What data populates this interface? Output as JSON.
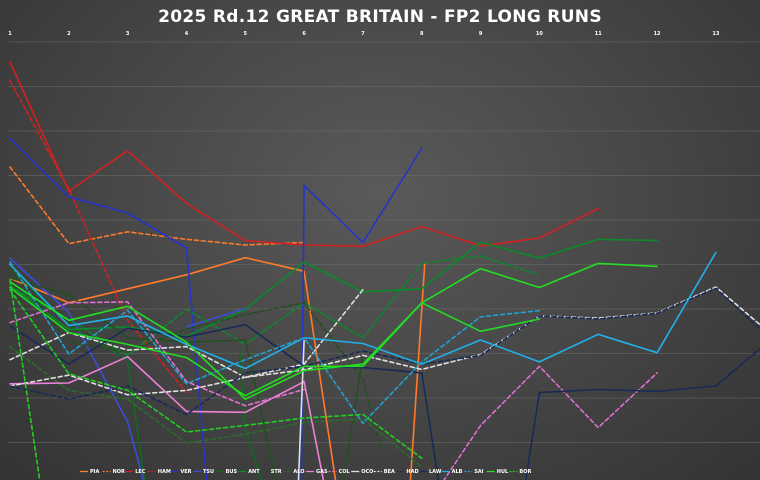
{
  "chart_data": {
    "type": "line",
    "title": "2025 Rd.12 GREAT BRITAIN - FP2 LONG RUNS",
    "xlabel": "",
    "ylabel": "",
    "x_ticks": [
      "1",
      "2",
      "3",
      "4",
      "5",
      "6",
      "7",
      "8",
      "9",
      "10",
      "11",
      "12",
      "13"
    ],
    "x_range": [
      1,
      13.75
    ],
    "y_range": [
      0,
      1
    ],
    "grid": true,
    "legend_position": "bottom",
    "series": [
      {
        "name": "PIA",
        "color": "#ff7a2a",
        "dash": "solid",
        "points": [
          [
            1,
            0.544
          ],
          [
            2,
            0.6
          ],
          [
            3,
            0.568
          ],
          [
            4,
            0.536
          ],
          [
            5,
            0.497
          ],
          [
            6,
            0.528
          ],
          [
            6.55,
            1.02
          ]
        ]
      },
      {
        "name": "NOR",
        "color": "#ff7a2a",
        "dash": "dashed",
        "points": [
          [
            1,
            0.29
          ],
          [
            2,
            0.465
          ],
          [
            3,
            0.438
          ],
          [
            4,
            0.455
          ],
          [
            5,
            0.468
          ],
          [
            6,
            0.462
          ]
        ]
      },
      {
        "name": "",
        "color": "#ff7a2a",
        "dash": "solid",
        "points": [
          [
            7.8,
            1.02
          ],
          [
            8.05,
            0.512
          ]
        ]
      },
      {
        "name": "LEC",
        "color": "#d42020",
        "dash": "solid",
        "points": [
          [
            1,
            0.05
          ],
          [
            2,
            0.345
          ],
          [
            3,
            0.253
          ],
          [
            4,
            0.373
          ],
          [
            5,
            0.458
          ],
          [
            6,
            0.468
          ],
          [
            7,
            0.471
          ],
          [
            8,
            0.426
          ],
          [
            9,
            0.47
          ],
          [
            10,
            0.452
          ],
          [
            11,
            0.385
          ]
        ]
      },
      {
        "name": "HAM",
        "color": "#d42020",
        "dash": "dashed",
        "points": [
          [
            1,
            0.093
          ],
          [
            2,
            0.34
          ],
          [
            3,
            0.64
          ],
          [
            4,
            0.805
          ]
        ]
      },
      {
        "name": "VER",
        "color": "#2535c8",
        "dash": "solid",
        "points": [
          [
            1,
            0.225
          ],
          [
            2,
            0.358
          ],
          [
            3,
            0.395
          ],
          [
            4,
            0.475
          ],
          [
            4.35,
            1.02
          ]
        ]
      },
      {
        "name": "",
        "color": "#2535c8",
        "dash": "solid",
        "points": [
          [
            5.95,
            1.02
          ],
          [
            6,
            0.332
          ],
          [
            7,
            0.462
          ],
          [
            8,
            0.247
          ]
        ]
      },
      {
        "name": "TSU",
        "color": "#3a4ed8",
        "dash": "solid",
        "points": [
          [
            1,
            0.498
          ],
          [
            2,
            0.622
          ],
          [
            3,
            0.872
          ],
          [
            3.3,
            1.02
          ]
        ]
      },
      {
        "name": "",
        "color": "#3a4ed8",
        "dash": "solid",
        "points": [
          [
            4,
            0.655
          ],
          [
            5,
            0.613
          ]
        ]
      },
      {
        "name": "BUS",
        "color": "#116a20",
        "dash": "solid",
        "points": [
          [
            1,
            0.52
          ],
          [
            2,
            0.65
          ],
          [
            3,
            0.73
          ],
          [
            3.3,
            1.02
          ]
        ]
      },
      {
        "name": "",
        "color": "#116a20",
        "dash": "solid",
        "points": [
          [
            4.9,
            0.702
          ],
          [
            5,
            0.885
          ],
          [
            5.3,
            1.02
          ]
        ]
      },
      {
        "name": "ANT",
        "color": "#0a8a2a",
        "dash": "solid",
        "points": [
          [
            1,
            0.56
          ],
          [
            2,
            0.661
          ],
          [
            3,
            0.655
          ],
          [
            4,
            0.677
          ],
          [
            5,
            0.615
          ],
          [
            6,
            0.507
          ],
          [
            7,
            0.575
          ],
          [
            8,
            0.568
          ],
          [
            9,
            0.462
          ],
          [
            10,
            0.498
          ],
          [
            11,
            0.455
          ],
          [
            12,
            0.458
          ]
        ]
      },
      {
        "name": "",
        "color": "#0a8a2a",
        "dash": "dashed",
        "points": [
          [
            1,
            0.562
          ],
          [
            2,
            0.638
          ],
          [
            3,
            0.72
          ],
          [
            4,
            0.615
          ],
          [
            5,
            0.695
          ],
          [
            6,
            0.6
          ],
          [
            7,
            0.68
          ],
          [
            8,
            0.51
          ],
          [
            9,
            0.493
          ],
          [
            10,
            0.537
          ]
        ]
      },
      {
        "name": "STR",
        "color": "#234f22",
        "dash": "dashed",
        "points": [
          [
            1,
            0.52
          ],
          [
            2,
            0.69
          ],
          [
            3,
            0.712
          ],
          [
            4,
            0.66
          ],
          [
            5,
            0.627
          ],
          [
            6,
            0.6
          ],
          [
            7,
            0.775
          ],
          [
            7.3,
            0.93
          ]
        ]
      },
      {
        "name": "",
        "color": "#234f22",
        "dash": "solid",
        "points": [
          [
            1,
            0.543
          ],
          [
            2,
            0.582
          ],
          [
            3,
            0.68
          ],
          [
            4,
            0.69
          ],
          [
            5,
            0.685
          ],
          [
            5.55,
            1.02
          ]
        ]
      },
      {
        "name": "",
        "color": "#234f22",
        "dash": "solid",
        "points": [
          [
            6.65,
            1.02
          ],
          [
            7,
            0.72
          ]
        ]
      },
      {
        "name": "ALO",
        "color": "#2c6b2c",
        "dash": "dashed",
        "points": [
          [
            1,
            0.7
          ],
          [
            2,
            0.8
          ],
          [
            3,
            0.82
          ],
          [
            4,
            0.92
          ],
          [
            5,
            0.9
          ],
          [
            6,
            0.873
          ],
          [
            7,
            0.865
          ],
          [
            8,
            0.975
          ]
        ]
      },
      {
        "name": "GAS",
        "color": "#f080d8",
        "dash": "solid",
        "points": [
          [
            1,
            0.785
          ],
          [
            2,
            0.783
          ],
          [
            3,
            0.723
          ],
          [
            4,
            0.848
          ],
          [
            5,
            0.85
          ],
          [
            6,
            0.78
          ],
          [
            6.35,
            1.02
          ]
        ]
      },
      {
        "name": "COL",
        "color": "#e070d0",
        "dash": "dashed",
        "points": [
          [
            1,
            0.645
          ],
          [
            2,
            0.6
          ],
          [
            3,
            0.598
          ],
          [
            4,
            0.78
          ],
          [
            5,
            0.835
          ],
          [
            6,
            0.798
          ]
        ]
      },
      {
        "name": "",
        "color": "#e070d0",
        "dash": "dashed",
        "points": [
          [
            8.3,
            1.02
          ],
          [
            9,
            0.88
          ],
          [
            10,
            0.745
          ],
          [
            11,
            0.885
          ],
          [
            12,
            0.76
          ]
        ]
      },
      {
        "name": "OCO",
        "color": "#e0e0e0",
        "dash": "solid",
        "points": [
          [
            5.9,
            1.02
          ],
          [
            6,
            0.686
          ]
        ]
      },
      {
        "name": "",
        "color": "#e0e0e0",
        "dash": "dashed",
        "points": [
          [
            1,
            0.79
          ],
          [
            2,
            0.765
          ],
          [
            3,
            0.81
          ],
          [
            4,
            0.8
          ],
          [
            5,
            0.77
          ],
          [
            6,
            0.74
          ],
          [
            7,
            0.57
          ]
        ]
      },
      {
        "name": "BEA",
        "color": "#e0e0e0",
        "dash": "dashed",
        "points": [
          [
            1,
            0.73
          ],
          [
            2,
            0.668
          ],
          [
            3,
            0.708
          ],
          [
            4,
            0.7
          ],
          [
            5,
            0.77
          ],
          [
            6,
            0.753
          ],
          [
            7,
            0.72
          ],
          [
            8,
            0.752
          ],
          [
            9,
            0.718
          ],
          [
            10,
            0.63
          ],
          [
            11,
            0.635
          ],
          [
            12,
            0.623
          ],
          [
            13,
            0.564
          ],
          [
            13.75,
            0.65
          ]
        ]
      },
      {
        "name": "HAD",
        "color": "#1a2a58",
        "dash": "dashed",
        "points": [
          [
            1,
            0.79
          ],
          [
            2,
            0.82
          ],
          [
            3,
            0.79
          ],
          [
            4,
            0.855
          ],
          [
            5,
            0.76
          ],
          [
            6,
            0.745
          ],
          [
            7,
            0.71
          ],
          [
            8,
            0.74
          ],
          [
            9,
            0.72
          ],
          [
            10,
            0.63
          ],
          [
            11,
            0.637
          ],
          [
            12,
            0.624
          ],
          [
            13,
            0.567
          ],
          [
            13.75,
            0.66
          ]
        ]
      },
      {
        "name": "LAW",
        "color": "#1a2a58",
        "dash": "solid",
        "points": [
          [
            1,
            0.653
          ],
          [
            2,
            0.74
          ],
          [
            3,
            0.658
          ],
          [
            4,
            0.678
          ],
          [
            5,
            0.65
          ],
          [
            6,
            0.745
          ],
          [
            7,
            0.748
          ],
          [
            8,
            0.76
          ],
          [
            8.3,
            1.02
          ]
        ]
      },
      {
        "name": "",
        "color": "#1a2a58",
        "dash": "solid",
        "points": [
          [
            9.75,
            1.02
          ],
          [
            10,
            0.805
          ],
          [
            11,
            0.798
          ],
          [
            12,
            0.802
          ],
          [
            13,
            0.79
          ],
          [
            13.75,
            0.705
          ]
        ]
      },
      {
        "name": "ALB",
        "color": "#22b0e8",
        "dash": "solid",
        "points": [
          [
            1,
            0.512
          ],
          [
            2,
            0.652
          ],
          [
            3,
            0.63
          ],
          [
            4,
            0.695
          ],
          [
            5,
            0.75
          ],
          [
            6,
            0.68
          ],
          [
            7,
            0.693
          ],
          [
            8,
            0.74
          ],
          [
            9,
            0.685
          ],
          [
            10,
            0.735
          ],
          [
            11,
            0.672
          ],
          [
            12,
            0.714
          ],
          [
            13,
            0.485
          ]
        ]
      },
      {
        "name": "SAI",
        "color": "#22a0d0",
        "dash": "dashed",
        "points": [
          [
            1,
            0.507
          ],
          [
            2,
            0.717
          ],
          [
            3,
            0.617
          ],
          [
            4,
            0.785
          ],
          [
            5,
            0.73
          ],
          [
            6,
            0.68
          ],
          [
            7,
            0.875
          ],
          [
            8,
            0.735
          ],
          [
            9,
            0.632
          ],
          [
            10,
            0.618
          ]
        ]
      },
      {
        "name": "HUL",
        "color": "#22dd22",
        "dash": "solid",
        "points": [
          [
            1,
            0.552
          ],
          [
            2,
            0.64
          ],
          [
            3,
            0.608
          ],
          [
            4,
            0.69
          ],
          [
            5,
            0.82
          ],
          [
            6,
            0.755
          ],
          [
            7,
            0.74
          ],
          [
            8,
            0.6
          ],
          [
            9,
            0.665
          ],
          [
            10,
            0.637
          ]
        ]
      },
      {
        "name": "",
        "color": "#22dd22",
        "dash": "solid",
        "points": [
          [
            1,
            0.565
          ],
          [
            2,
            0.668
          ],
          [
            3,
            0.695
          ],
          [
            4,
            0.725
          ],
          [
            5,
            0.812
          ],
          [
            6,
            0.745
          ],
          [
            7,
            0.745
          ],
          [
            8,
            0.6
          ],
          [
            9,
            0.522
          ],
          [
            10,
            0.565
          ],
          [
            11,
            0.51
          ],
          [
            12,
            0.517
          ]
        ]
      },
      {
        "name": "BOR",
        "color": "#22cc22",
        "dash": "dashed",
        "points": [
          [
            1,
            0.548
          ],
          [
            1.5,
            1.0
          ]
        ]
      },
      {
        "name": "",
        "color": "#22cc22",
        "dash": "dashed",
        "points": [
          [
            1,
            0.57
          ],
          [
            2,
            0.762
          ],
          [
            3,
            0.8
          ],
          [
            4,
            0.895
          ],
          [
            5,
            0.88
          ],
          [
            6,
            0.863
          ],
          [
            7,
            0.855
          ],
          [
            8,
            0.955
          ]
        ]
      }
    ]
  }
}
